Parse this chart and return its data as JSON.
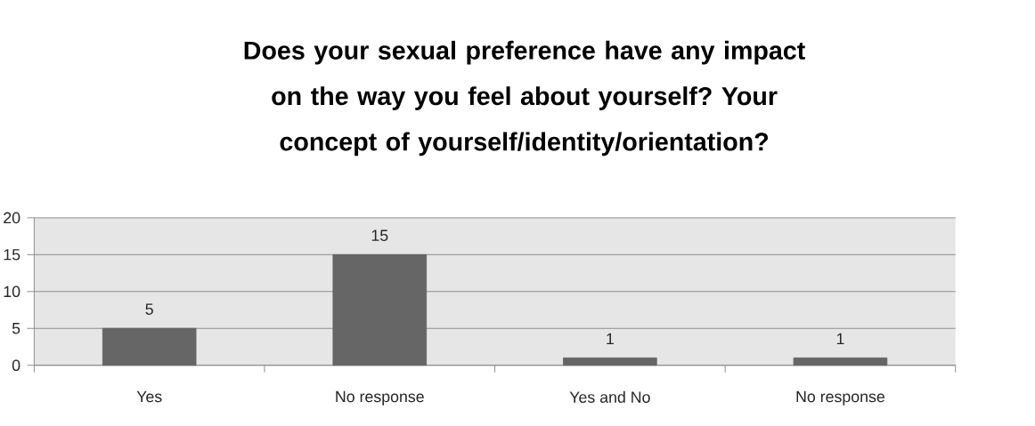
{
  "chart_data": {
    "type": "bar",
    "title": "Does your sexual preference have any impact on the way you feel about yourself? Your concept of yourself/identity/orientation?",
    "categories": [
      "Yes",
      "No response",
      "Yes and No",
      "No response"
    ],
    "values": [
      5,
      15,
      1,
      1
    ],
    "color": "#666666",
    "ylim": [
      0,
      20
    ],
    "yticks": [
      0,
      5,
      10,
      15,
      20
    ],
    "grid": "y",
    "data_labels": true
  }
}
